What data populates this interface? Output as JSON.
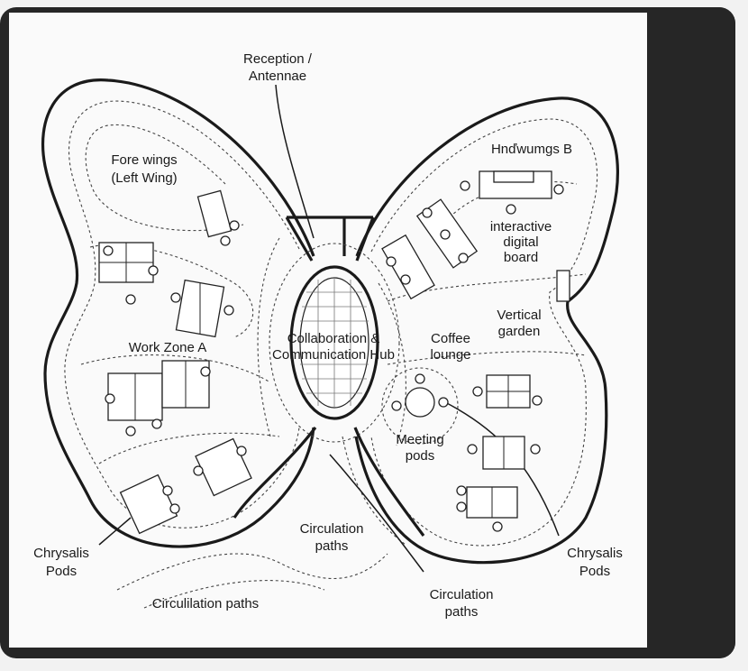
{
  "labels": {
    "reception_line1": "Reception /",
    "reception_line2": "Antennae",
    "forewings_line1": "Fore wings",
    "forewings_line2": "(Left Wing)",
    "hindwings": "Hnďwumgs B",
    "interactive_line1": "interactive",
    "interactive_line2": "digital",
    "interactive_line3": "board",
    "vertical_line1": "Vertical",
    "vertical_line2": "garden",
    "hub_line1": "Collaboration &",
    "hub_line2": "Communication Hub",
    "coffee_line1": "Coffee",
    "coffee_line2": "lounge",
    "workzone": "Work Zone A",
    "meeting_line1": "Meeting",
    "meeting_line2": "pods",
    "chrysalis_left_line1": "Chrysalis",
    "chrysalis_left_line2": "Pods",
    "chrysalis_right_line1": "Chrysalis",
    "chrysalis_right_line2": "Pods",
    "circ_center_line1": "Circulation",
    "circ_center_line2": "paths",
    "circ_bottom_left": "Circulilation paths",
    "circ_bottom_right_line1": "Circulation",
    "circ_bottom_right_line2": "paths"
  }
}
